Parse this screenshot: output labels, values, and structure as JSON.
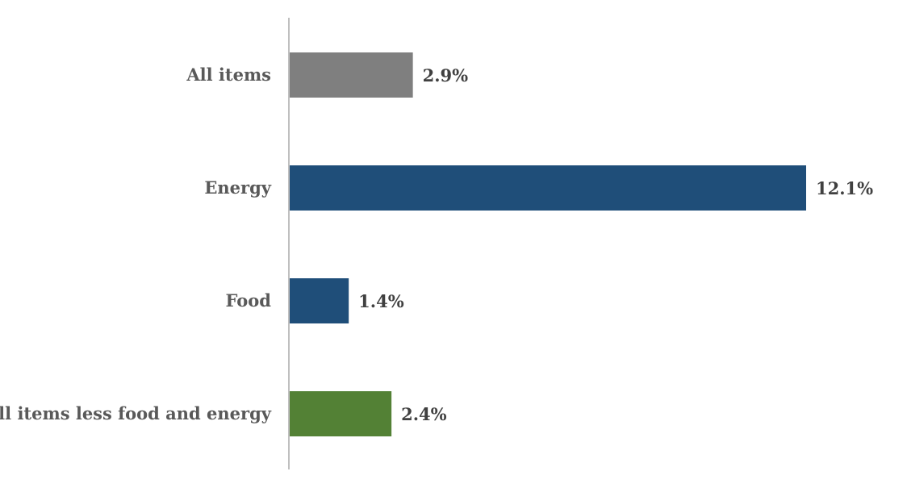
{
  "chart_data": {
    "type": "bar",
    "orientation": "horizontal",
    "title": "",
    "xlabel": "",
    "ylabel": "",
    "grid": false,
    "legend": "none",
    "categories": [
      "All items",
      "Energy",
      "Food",
      "All items less food and energy"
    ],
    "values": [
      2.9,
      12.1,
      1.4,
      2.4
    ],
    "value_labels": [
      "2.9%",
      "12.1%",
      "1.4%",
      "2.4%"
    ],
    "unit": "%",
    "xlim": [
      0,
      12.1
    ],
    "colors": [
      "#7f7f7f",
      "#1f4e79",
      "#1f4e79",
      "#538135"
    ],
    "axis_color": "#bfbfbf"
  }
}
